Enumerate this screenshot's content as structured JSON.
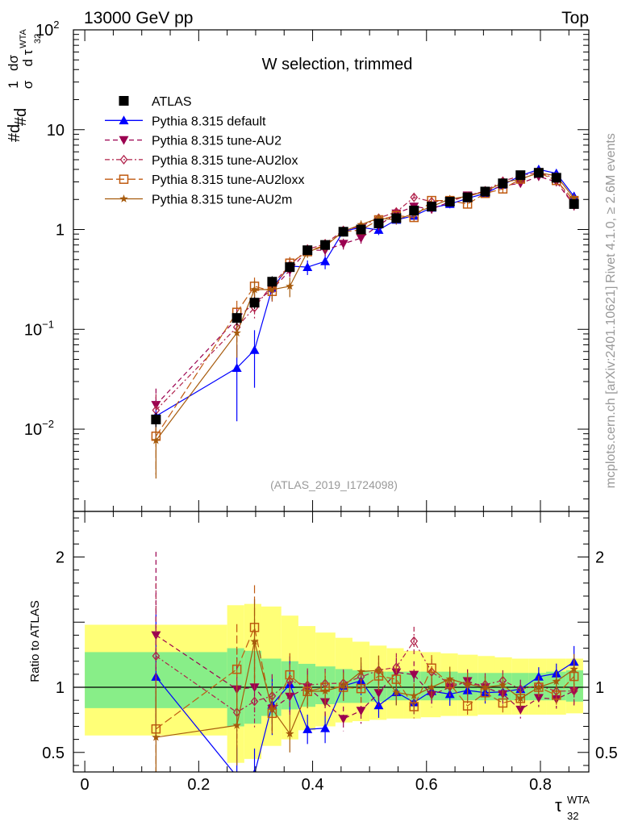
{
  "header": {
    "energy_label": "13000 GeV pp",
    "process_label": "Top"
  },
  "side_labels": {
    "rivet": "Rivet 4.1.0, ≥ 2.6M events",
    "mcplots": "mcplots.cern.ch [arXiv:2401.10621]"
  },
  "chart_data": [
    {
      "type": "scatter",
      "panel": "main",
      "title": "W selection, trimmed",
      "analysis_tag": "(ATLAS_2019_I1724098)",
      "yscale": "log",
      "ylabel_parts": [
        "#d",
        "1",
        "σ",
        "#d",
        "dσ",
        "d τ",
        "WTA",
        "32"
      ],
      "ylim": [
        0.0015,
        100
      ],
      "y_ticks": [
        {
          "value": 0.01,
          "base": "10",
          "exp": "−2"
        },
        {
          "value": 0.1,
          "base": "10",
          "exp": "−1"
        },
        {
          "value": 1,
          "base": "1",
          "exp": ""
        },
        {
          "value": 10,
          "base": "10",
          "exp": ""
        },
        {
          "value": 100,
          "base": "10",
          "exp": "2"
        }
      ],
      "x": [
        0.125,
        0.267,
        0.298,
        0.329,
        0.36,
        0.391,
        0.422,
        0.454,
        0.485,
        0.516,
        0.547,
        0.578,
        0.609,
        0.641,
        0.672,
        0.703,
        0.734,
        0.765,
        0.797,
        0.828,
        0.859
      ],
      "series": [
        {
          "name": "ATLAS",
          "style": "data",
          "color": "#000000",
          "values": [
            0.0125,
            0.13,
            0.185,
            0.3,
            0.42,
            0.62,
            0.7,
            0.95,
            1.0,
            1.15,
            1.3,
            1.55,
            1.7,
            1.9,
            2.1,
            2.4,
            2.9,
            3.5,
            3.7,
            3.3,
            1.8
          ],
          "errors": [
            0.002,
            0.02,
            0.025,
            0.04,
            0.05,
            0.06,
            0.07,
            0.09,
            0.1,
            0.1,
            0.12,
            0.14,
            0.15,
            0.17,
            0.18,
            0.2,
            0.22,
            0.25,
            0.26,
            0.25,
            0.2
          ]
        },
        {
          "name": "Pythia 8.315 default",
          "style": "solid",
          "marker": "triangle-up",
          "color": "#0000ff",
          "values": [
            0.0135,
            0.041,
            0.062,
            0.26,
            0.43,
            0.42,
            0.48,
            0.96,
            1.05,
            0.99,
            1.25,
            1.37,
            1.65,
            1.8,
            2.05,
            2.3,
            2.8,
            3.45,
            4.0,
            3.65,
            2.15
          ],
          "errors": [
            0.006,
            0.029,
            0.036,
            0.07,
            0.09,
            0.07,
            0.08,
            0.11,
            0.11,
            0.11,
            0.13,
            0.14,
            0.16,
            0.17,
            0.18,
            0.2,
            0.22,
            0.25,
            0.27,
            0.25,
            0.22
          ]
        },
        {
          "name": "Pythia 8.315 tune-AU2",
          "style": "dashed",
          "marker": "triangle-down",
          "color": "#9b0050",
          "values": [
            0.0175,
            0.128,
            0.185,
            0.25,
            0.39,
            0.62,
            0.62,
            0.72,
            0.82,
            1.1,
            1.45,
            1.7,
            1.6,
            1.9,
            2.2,
            2.4,
            2.75,
            2.9,
            3.4,
            3.0,
            1.75
          ],
          "errors": [
            0.008,
            0.04,
            0.04,
            0.05,
            0.06,
            0.08,
            0.08,
            0.09,
            0.1,
            0.12,
            0.14,
            0.16,
            0.16,
            0.17,
            0.19,
            0.2,
            0.22,
            0.24,
            0.26,
            0.24,
            0.2
          ]
        },
        {
          "name": "Pythia 8.315 tune-AU2lox",
          "style": "dashdot",
          "marker": "diamond-open",
          "color": "#b0204a",
          "values": [
            0.0155,
            0.105,
            0.165,
            0.28,
            0.44,
            0.63,
            0.72,
            0.98,
            1.08,
            1.3,
            1.5,
            2.1,
            1.9,
            1.95,
            2.15,
            2.45,
            3.05,
            3.45,
            3.75,
            3.2,
            1.75
          ],
          "errors": [
            0.007,
            0.035,
            0.04,
            0.05,
            0.06,
            0.08,
            0.08,
            0.1,
            0.11,
            0.13,
            0.14,
            0.17,
            0.17,
            0.18,
            0.19,
            0.21,
            0.23,
            0.25,
            0.27,
            0.25,
            0.2
          ]
        },
        {
          "name": "Pythia 8.315 tune-AU2loxx",
          "style": "longdash",
          "marker": "square-open",
          "color": "#c05a10",
          "values": [
            0.0085,
            0.148,
            0.27,
            0.24,
            0.46,
            0.6,
            0.7,
            0.95,
            0.99,
            1.25,
            1.38,
            1.32,
            1.95,
            1.95,
            1.8,
            2.3,
            2.55,
            3.2,
            3.7,
            3.1,
            1.95
          ],
          "errors": [
            0.005,
            0.045,
            0.06,
            0.05,
            0.07,
            0.08,
            0.08,
            0.1,
            0.11,
            0.13,
            0.14,
            0.14,
            0.17,
            0.18,
            0.17,
            0.2,
            0.22,
            0.25,
            0.27,
            0.25,
            0.22
          ]
        },
        {
          "name": "Pythia 8.315 tune-AU2m",
          "style": "solid",
          "marker": "star",
          "color": "#a65a0c",
          "values": [
            0.0077,
            0.092,
            0.25,
            0.25,
            0.27,
            0.6,
            0.68,
            0.96,
            1.12,
            1.3,
            1.25,
            1.45,
            1.7,
            2.02,
            2.15,
            2.4,
            2.95,
            3.2,
            3.7,
            3.45,
            2.05
          ],
          "errors": [
            0.0045,
            0.04,
            0.06,
            0.05,
            0.06,
            0.08,
            0.08,
            0.1,
            0.11,
            0.13,
            0.13,
            0.15,
            0.16,
            0.18,
            0.19,
            0.2,
            0.23,
            0.25,
            0.27,
            0.26,
            0.21
          ]
        }
      ],
      "legend": {
        "position": "top-left"
      }
    },
    {
      "type": "scatter",
      "panel": "ratio",
      "ylabel": "Ratio to ATLAS",
      "xlabel_main": "τ",
      "xlabel_sup": "WTA",
      "xlabel_sub": "32",
      "xlim": [
        -0.02,
        0.885
      ],
      "ylim": [
        0.35,
        2.35
      ],
      "x_ticks": [
        0,
        0.2,
        0.4,
        0.6,
        0.8
      ],
      "x_tick_labels": [
        "0",
        "0.2",
        "0.4",
        "0.6",
        "0.8"
      ],
      "y_ticks": [
        0.5,
        1,
        2
      ],
      "y_tick_labels": [
        "0.5",
        "1",
        "2"
      ],
      "band_edges": [
        0,
        0.25,
        0.28,
        0.31,
        0.345,
        0.375,
        0.405,
        0.44,
        0.47,
        0.5,
        0.53,
        0.56,
        0.59,
        0.625,
        0.655,
        0.69,
        0.72,
        0.75,
        0.78,
        0.81,
        0.845,
        0.875
      ],
      "band_green": [
        [
          0.84,
          1.27
        ],
        [
          0.7,
          1.3
        ],
        [
          0.72,
          1.28
        ],
        [
          0.78,
          1.22
        ],
        [
          0.83,
          1.2
        ],
        [
          0.85,
          1.18
        ],
        [
          0.87,
          1.16
        ],
        [
          0.88,
          1.14
        ],
        [
          0.88,
          1.13
        ],
        [
          0.89,
          1.12
        ],
        [
          0.9,
          1.12
        ],
        [
          0.9,
          1.12
        ],
        [
          0.9,
          1.12
        ],
        [
          0.9,
          1.12
        ],
        [
          0.9,
          1.11
        ],
        [
          0.9,
          1.11
        ],
        [
          0.9,
          1.11
        ],
        [
          0.9,
          1.11
        ],
        [
          0.9,
          1.11
        ],
        [
          0.9,
          1.12
        ],
        [
          0.89,
          1.13
        ]
      ],
      "band_yellow": [
        [
          0.63,
          1.48
        ],
        [
          0.42,
          1.63
        ],
        [
          0.45,
          1.64
        ],
        [
          0.55,
          1.62
        ],
        [
          0.6,
          1.55
        ],
        [
          0.67,
          1.47
        ],
        [
          0.7,
          1.42
        ],
        [
          0.73,
          1.38
        ],
        [
          0.74,
          1.35
        ],
        [
          0.75,
          1.32
        ],
        [
          0.76,
          1.3
        ],
        [
          0.76,
          1.28
        ],
        [
          0.77,
          1.27
        ],
        [
          0.78,
          1.26
        ],
        [
          0.78,
          1.25
        ],
        [
          0.79,
          1.24
        ],
        [
          0.79,
          1.23
        ],
        [
          0.79,
          1.22
        ],
        [
          0.79,
          1.22
        ],
        [
          0.79,
          1.22
        ],
        [
          0.8,
          1.22
        ]
      ]
    }
  ]
}
